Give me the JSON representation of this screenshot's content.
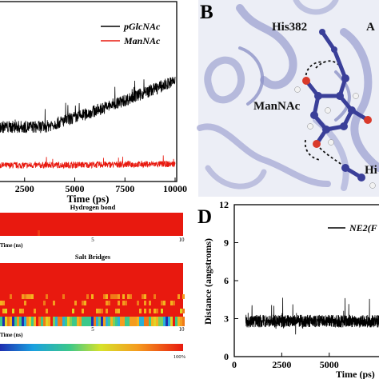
{
  "panel_b": {
    "letter": "B",
    "labels": {
      "his382": "His382",
      "a": "A",
      "mannac": "ManNAc",
      "hi": "Hi"
    }
  },
  "panel_c": {
    "title_hbond": "Hydrogen bond",
    "title_salt": "Salt Bridges",
    "tick_5": "5",
    "tick_10": "10",
    "time_label": "Time (ns)",
    "colorbar_max": "100%"
  },
  "panel_d": {
    "letter": "D"
  },
  "chart_data": [
    {
      "type": "line",
      "title": "",
      "xlabel": "Time (ps)",
      "ylabel": "",
      "xlim": [
        0,
        10000
      ],
      "x_ticks": [
        "2500",
        "5000",
        "7500",
        "10000"
      ],
      "legend_position": "top-right",
      "series": [
        {
          "name": "pGlcNAc",
          "color": "#000000",
          "trend": [
            [
              0,
              0.3
            ],
            [
              3500,
              0.3
            ],
            [
              5500,
              0.37
            ],
            [
              7500,
              0.45
            ],
            [
              10000,
              0.56
            ]
          ],
          "noise": 0.035
        },
        {
          "name": "ManNAc",
          "color": "#e8190f",
          "trend": [
            [
              0,
              0.08
            ],
            [
              10000,
              0.09
            ]
          ],
          "noise": 0.018
        }
      ]
    },
    {
      "type": "line",
      "title": "",
      "xlabel": "Time (ps)",
      "ylabel": "Distance (angstroms)",
      "xlim": [
        0,
        8000
      ],
      "ylim": [
        0,
        12
      ],
      "x_ticks": [
        "0",
        "2500",
        "5000"
      ],
      "y_ticks": [
        "0",
        "3",
        "6",
        "9",
        "12"
      ],
      "legend_position": "top-right",
      "series": [
        {
          "name": "NE2(F",
          "color": "#000000",
          "mean": 2.8,
          "noise": 0.5
        }
      ]
    }
  ]
}
